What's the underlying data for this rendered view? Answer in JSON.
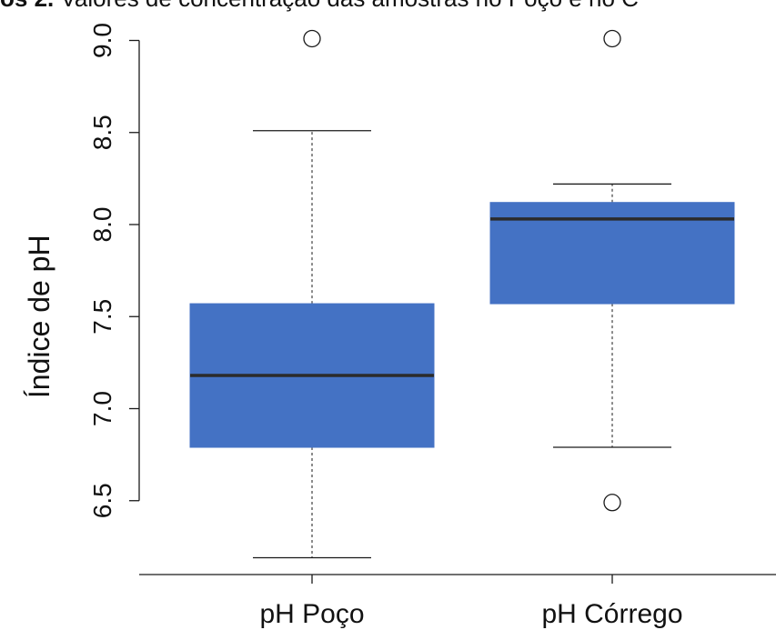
{
  "header": {
    "title_bold": "os 2.",
    "title_rest": " Valores de concentração das amostras no Poço e no C"
  },
  "chart_data": {
    "type": "boxplot",
    "ylabel": "Índice de pH",
    "ylim": [
      6.0,
      9.2
    ],
    "yticks": [
      6.5,
      7.0,
      7.5,
      8.0,
      8.5,
      9.0
    ],
    "ytick_labels": [
      "6.5",
      "7.0",
      "7.5",
      "8.0",
      "8.5",
      "9.0"
    ],
    "categories": [
      "pH Poço",
      "pH Córrego"
    ],
    "boxes": [
      {
        "name": "pH Poço",
        "whisker_low": 6.19,
        "q1": 6.79,
        "median": 7.18,
        "q3": 7.57,
        "whisker_high": 8.51,
        "outliers": [
          9.01
        ]
      },
      {
        "name": "pH Córrego",
        "whisker_low": 6.79,
        "q1": 7.57,
        "median": 8.03,
        "q3": 8.12,
        "whisker_high": 8.22,
        "outliers": [
          6.49,
          9.01
        ]
      }
    ],
    "colors": {
      "box_fill": "#4472C4",
      "median": "#2b2b2b",
      "lines": "#1a1a1a"
    },
    "grid": false,
    "legend": "none"
  }
}
